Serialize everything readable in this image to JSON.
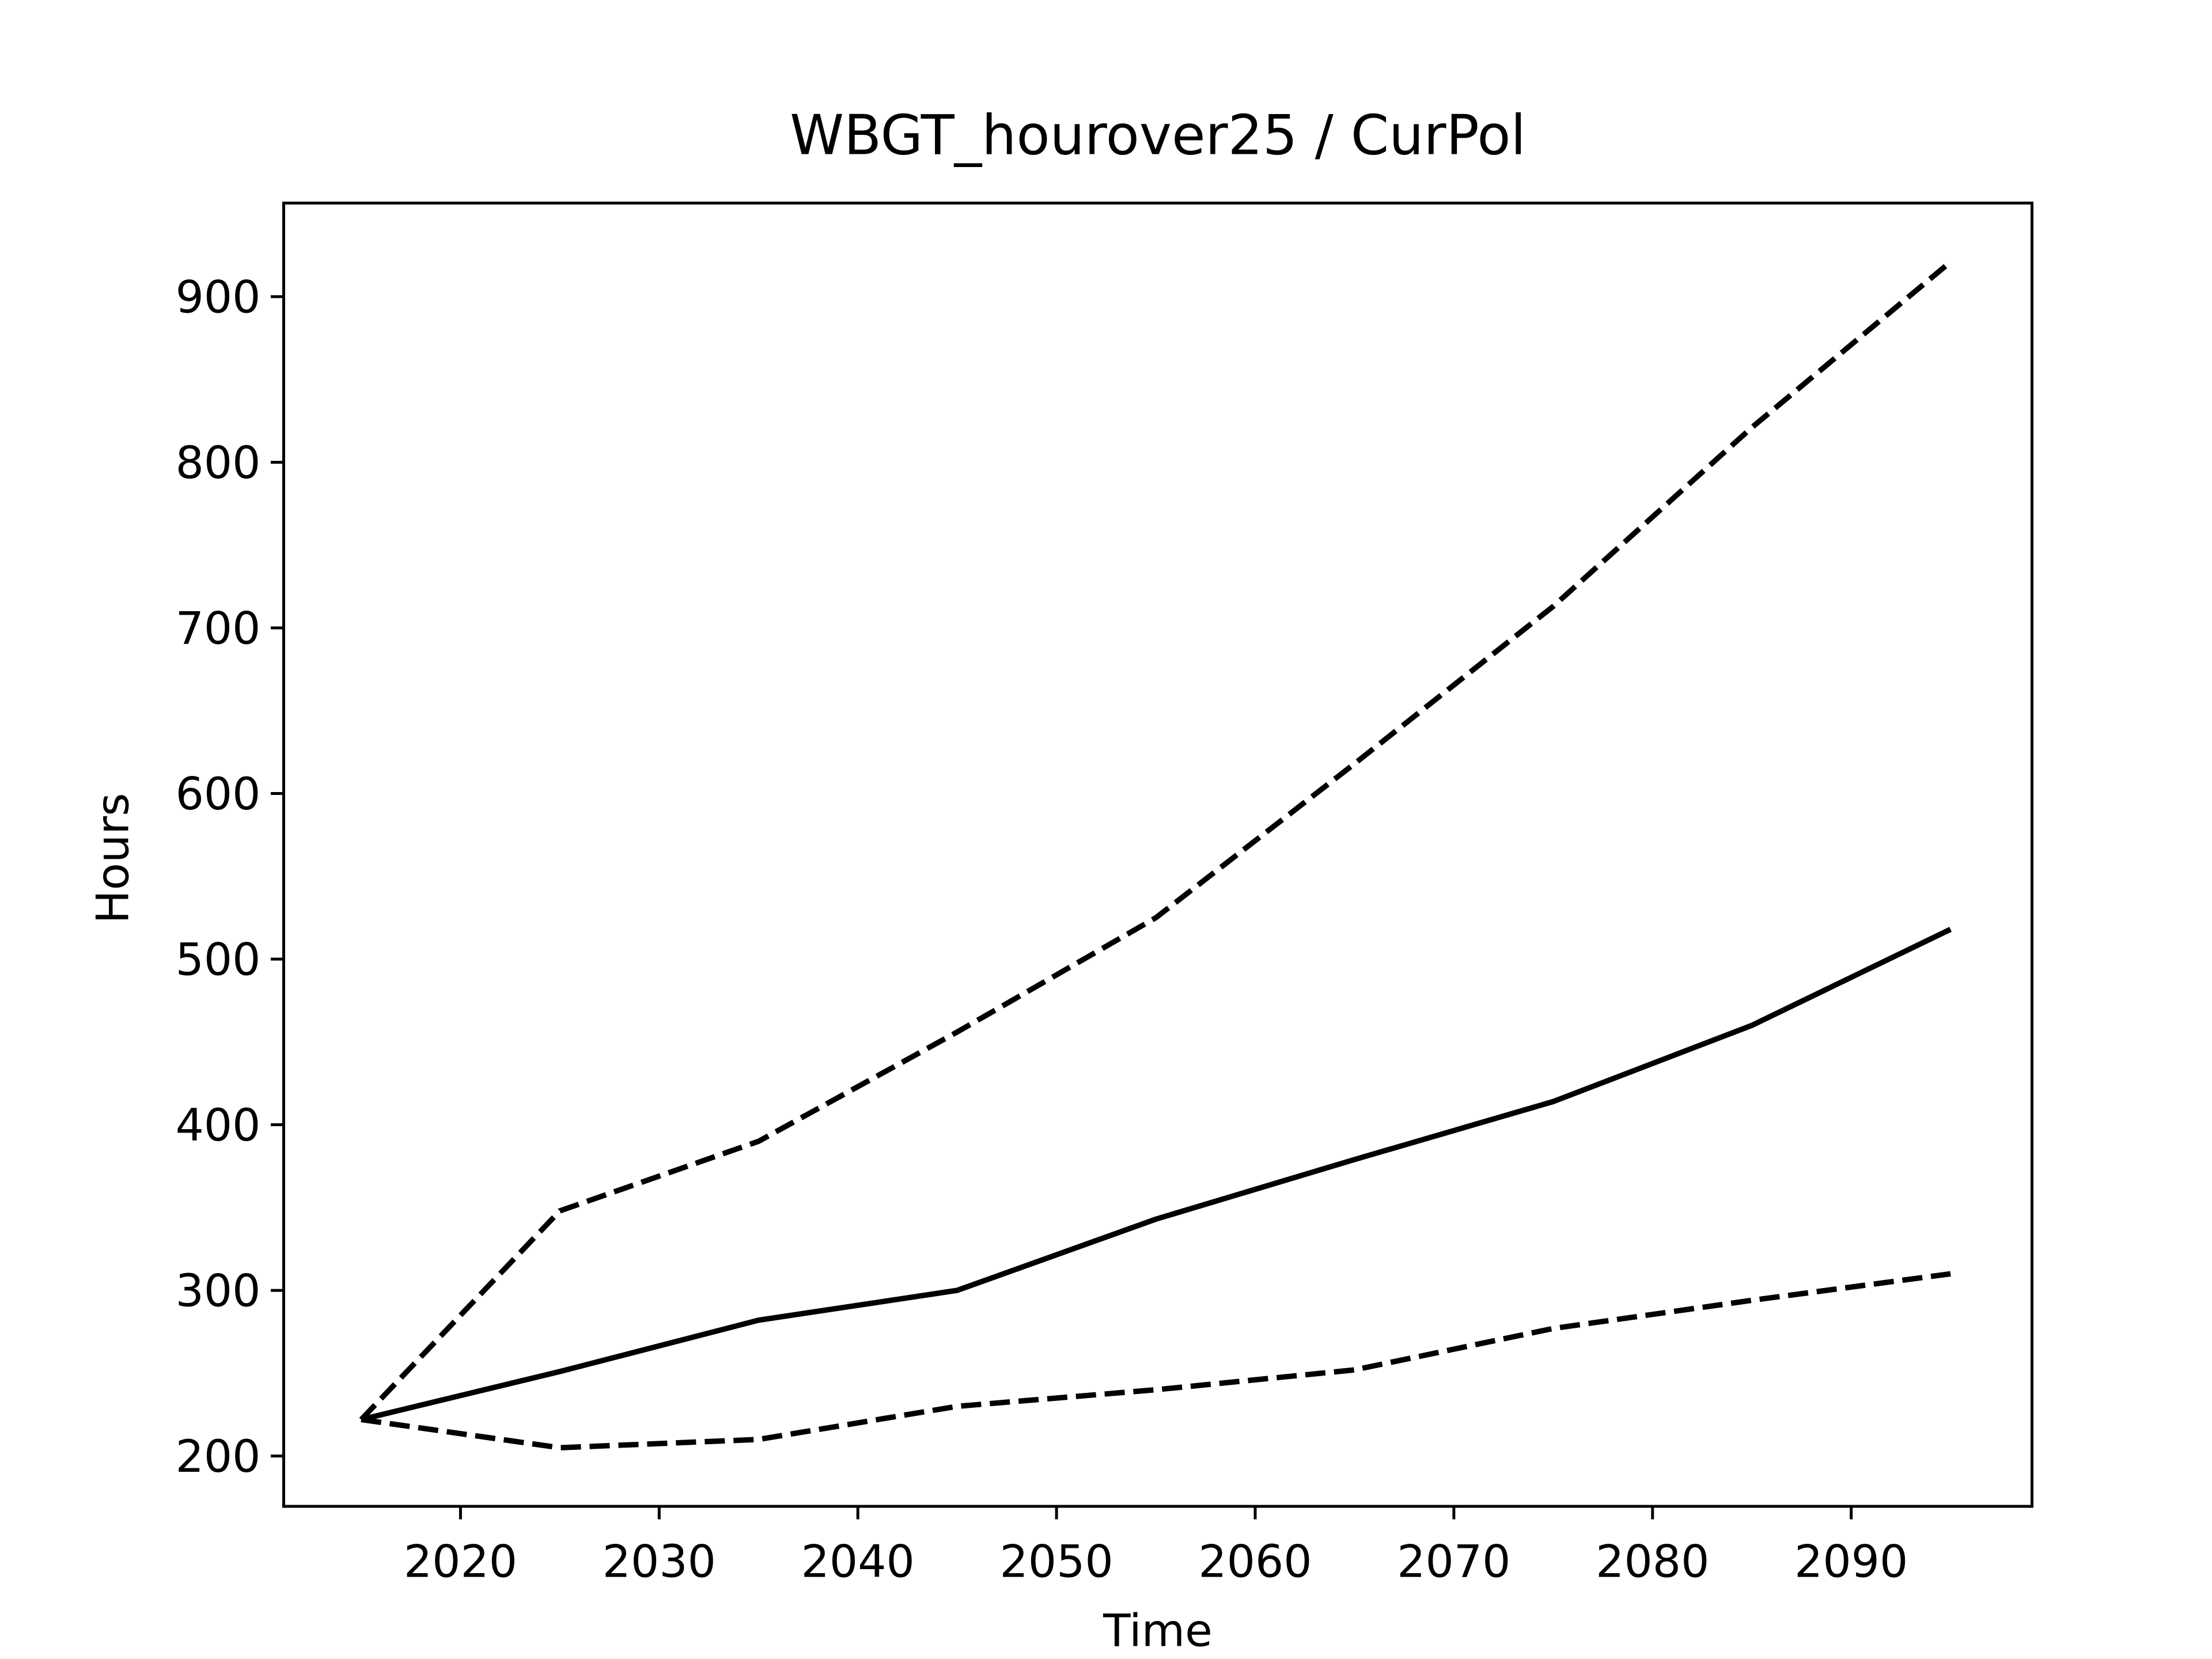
{
  "chart_data": {
    "type": "line",
    "title": "WBGT_hourover25 / CurPol",
    "x_label": "Time",
    "y_label": "Hours",
    "x": [
      2015,
      2025,
      2035,
      2045,
      2055,
      2065,
      2075,
      2085,
      2095
    ],
    "series": [
      {
        "color": "#000000",
        "linestyle": "solid",
        "values": [
          222,
          251,
          282,
          300,
          343,
          379,
          414,
          460,
          518
        ]
      },
      {
        "color": "#000000",
        "linestyle": "dashed",
        "values": [
          222,
          348,
          390,
          456,
          525,
          618,
          713,
          821,
          921
        ]
      },
      {
        "color": "#000000",
        "linestyle": "dashed",
        "values": [
          222,
          205,
          210,
          230,
          240,
          252,
          277,
          294,
          310
        ]
      }
    ],
    "xlim": [
      2011.1,
      2099.1
    ],
    "xticks": [
      2020,
      2030,
      2040,
      2050,
      2060,
      2070,
      2080,
      2090
    ],
    "ylim": [
      169.6,
      956.5
    ],
    "yticks": [
      200,
      300,
      400,
      500,
      600,
      700,
      800,
      900
    ],
    "grid": false
  }
}
